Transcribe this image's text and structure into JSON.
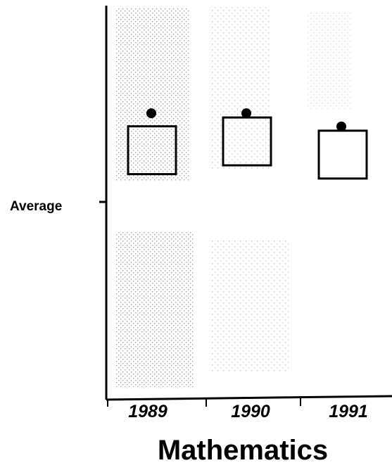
{
  "chart_data": {
    "type": "scatter",
    "title": "",
    "xlabel": "Mathematics",
    "ylabel": "",
    "y_reference_label": "Average",
    "categories": [
      "1989",
      "1990",
      "1991"
    ],
    "series": [
      {
        "marker": "open-square",
        "values": [
          0.3,
          0.4,
          0.25
        ]
      },
      {
        "marker": "filled-dot",
        "values": [
          1.0,
          1.0,
          0.85
        ]
      }
    ],
    "y_reference": 0,
    "shaded_bands": true,
    "grid": false,
    "colors": {
      "marks": "#000000",
      "band": "#b8b8b8",
      "background": "#ffffff"
    }
  }
}
